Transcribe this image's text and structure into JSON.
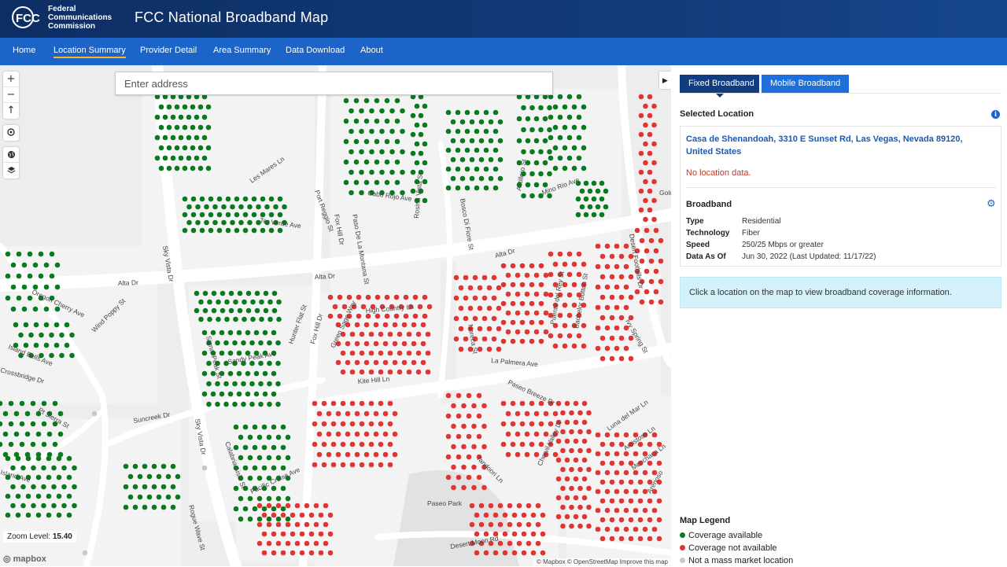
{
  "header": {
    "logo_text": "FCC",
    "agency_line1": "Federal",
    "agency_line2": "Communications",
    "agency_line3": "Commission",
    "title": "FCC National Broadband Map"
  },
  "nav": {
    "items": [
      {
        "label": "Home"
      },
      {
        "label": "Location Summary",
        "active": true
      },
      {
        "label": "Provider Detail"
      },
      {
        "label": "Area Summary"
      },
      {
        "label": "Data Download"
      },
      {
        "label": "About"
      }
    ]
  },
  "map": {
    "search_placeholder": "Enter address",
    "controls": {
      "zoom_in": "+",
      "zoom_out": "−",
      "compass": "↑",
      "locate_icon": "crosshair-icon",
      "basemap_icon": "globe-icon",
      "layers_icon": "layers-icon"
    },
    "collapse_glyph": "▶",
    "zoom_label": "Zoom Level:",
    "zoom_value": "15.40",
    "mapbox_label": "◎ mapbox",
    "attribution": "© Mapbox © OpenStreetMap  Improve this map",
    "street_labels": [
      "Les Mares Ln",
      "Port Reggio St",
      "Ter Verde Ave",
      "Fox Hill Dr",
      "Paso De La Montana St",
      "Cabo Rojo Ave",
      "Rosina Vista St",
      "Bosco Di Fiore St",
      "Astillero St",
      "Mino Rio Ave",
      "Desert Foothills Dr",
      "Golc",
      "Sky Vista Dr",
      "Alta Dr",
      "Alta Dr",
      "Alta Dr",
      "Oregon Cherry Ave",
      "Wind Poppy St",
      "Island Bells Ave",
      "Crossbridge Dr",
      "Pt Sierra St",
      "Signal Peak St",
      "Sandy Peak Ave",
      "Hunter Flat St",
      "Fox Hill Dr",
      "Green Sage Way",
      "High Country Ln",
      "Kite Hill Ln",
      "Suncreek Dr",
      "Sky Vista Dr",
      "Calabria Aisle St",
      "Rogue Wave St",
      "Pacific Cruise Ave",
      "Noreca St",
      "Puente del Rey St",
      "Bachelor Button St",
      "Ivy Spring St",
      "La Palmera Ave",
      "Paseo Breeze Dr",
      "Tandoori Ln",
      "Chervil Valley Dr",
      "Luna del Mar Ln",
      "Amistoso Ln",
      "Menchaca Ln",
      "Arenoso",
      "Paseo Park",
      "Desert Moon Rd",
      "Island Ave"
    ],
    "colors": {
      "covered": "#0a7a1f",
      "not_covered": "#e03535",
      "not_mass_market": "#c8c8c8",
      "road": "#ffffff",
      "land": "#ededed"
    }
  },
  "panel": {
    "tabs": [
      {
        "label": "Fixed Broadband",
        "active": true
      },
      {
        "label": "Mobile Broadband"
      }
    ],
    "selected_location_title": "Selected Location",
    "info_icon": "i",
    "address": "Casa de Shenandoah, 3310 E Sunset Rd, Las Vegas, Nevada 89120, United States",
    "no_data": "No location data.",
    "broadband_title": "Broadband",
    "gear_icon": "⚙",
    "details": [
      {
        "key": "Type",
        "value": "Residential"
      },
      {
        "key": "Technology",
        "value": "Fiber"
      },
      {
        "key": "Speed",
        "value": "250/25 Mbps or greater"
      },
      {
        "key": "Data As Of",
        "value": "Jun 30, 2022 (Last Updated: 11/17/22)"
      }
    ],
    "hint": "Click a location on the map to view broadband coverage information.",
    "legend": {
      "title": "Map Legend",
      "items": [
        {
          "label": "Coverage available",
          "color": "#0a7a1f"
        },
        {
          "label": "Coverage not available",
          "color": "#e03535"
        },
        {
          "label": "Not a mass market location",
          "color": "#c8c8c8"
        }
      ]
    }
  }
}
